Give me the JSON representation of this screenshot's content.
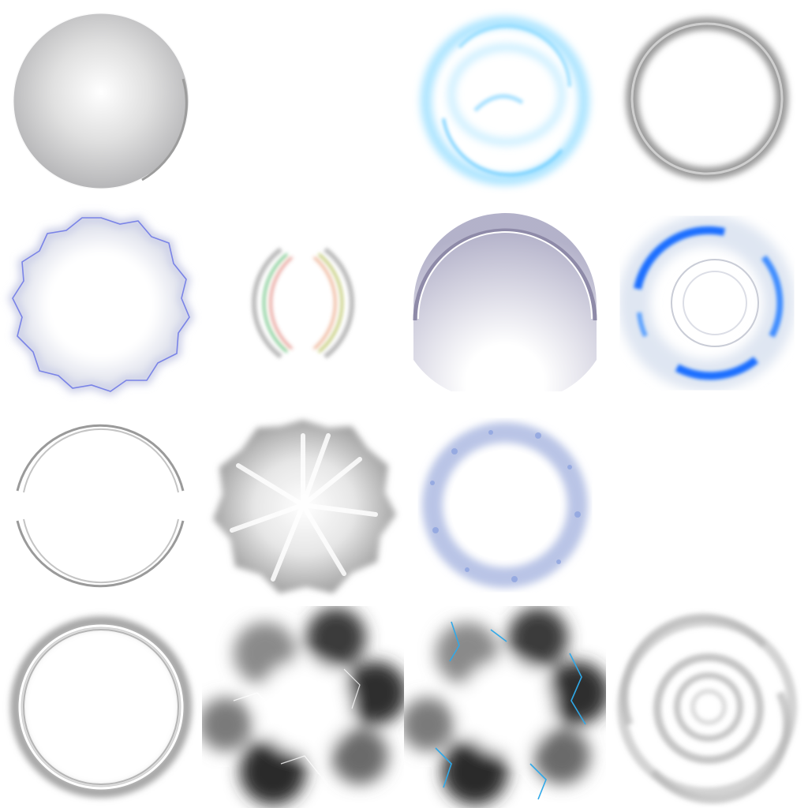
{
  "sheet": {
    "background": "#ffffff",
    "columns": 4,
    "rows": 4
  },
  "sprites": [
    {
      "name": "glossy-sphere-sprite",
      "kind": "sphere",
      "tint": "#b9b9bb",
      "present": true
    },
    {
      "name": "empty-slot",
      "kind": "empty",
      "present": false
    },
    {
      "name": "blue-swirl-ring-sprite",
      "kind": "swirl-ring",
      "tint": "#6fd0ff",
      "present": true
    },
    {
      "name": "gray-thick-ring-sprite",
      "kind": "thick-ring",
      "tint": "#9a9a9a",
      "present": true
    },
    {
      "name": "wavy-purple-edge-ring-sprite",
      "kind": "wavy-ring",
      "tint": "#6a74e6",
      "present": true
    },
    {
      "name": "rainbow-arc-sprite",
      "kind": "rainbow-arc",
      "tint": "#c0c0c0",
      "present": true
    },
    {
      "name": "lavender-half-dome-sprite",
      "kind": "half-dome",
      "tint": "#9a98b8",
      "present": true
    },
    {
      "name": "blue-energy-ring-sprite",
      "kind": "energy-ring",
      "tint": "#1f6fff",
      "present": true
    },
    {
      "name": "thin-double-arc-ring-sprite",
      "kind": "thin-arcs",
      "tint": "#9a9a9a",
      "present": true
    },
    {
      "name": "gray-starburst-sprite",
      "kind": "starburst",
      "tint": "#a8a8a8",
      "present": true
    },
    {
      "name": "blue-sparkle-ring-sprite",
      "kind": "sparkle-ring",
      "tint": "#a9b8e6",
      "present": true
    },
    {
      "name": "empty-slot",
      "kind": "empty",
      "present": false
    },
    {
      "name": "soft-gray-ring-sprite",
      "kind": "soft-ring",
      "tint": "#a6a6a6",
      "present": true
    },
    {
      "name": "smoke-burst-sprite",
      "kind": "smoke",
      "tint": "#3a3a3a",
      "present": true
    },
    {
      "name": "smoke-lightning-burst-sprite",
      "kind": "smoke-lightning",
      "tint": "#2fa8e8",
      "present": true
    },
    {
      "name": "gray-vortex-sprite",
      "kind": "vortex",
      "tint": "#b5b5b5",
      "present": true
    }
  ]
}
